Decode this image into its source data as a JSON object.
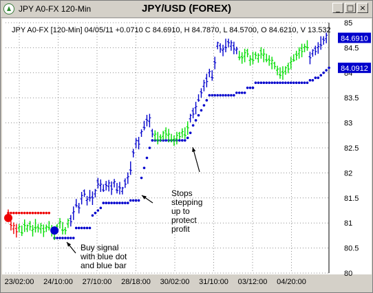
{
  "window": {
    "title": "JPY A0-FX 120-Min",
    "chart_title": "JPY/USD (FOREX)",
    "controls": {
      "minimize": "_",
      "maximize": "□",
      "close": "×"
    }
  },
  "info_line": "JPY A0-FX [120-Min] 04/05/11  +0.0710 C 84.6910, H 84.7870, L 84.5700, O 84.6210, V 13.532",
  "price_tags": {
    "last": "84.6910",
    "stop": "84.0912"
  },
  "annotations": [
    {
      "id": "buy",
      "lines": [
        "Buy signal",
        "with blue dot",
        "and blue bar"
      ]
    },
    {
      "id": "stops",
      "lines": [
        "Stops",
        "stepping",
        "up to",
        "protect",
        "profit"
      ]
    }
  ],
  "colors": {
    "up": "#00dd00",
    "down": "#0000cc",
    "stop": "#0000cc",
    "sell": "#ee0000",
    "tag_bg": "#0000cc"
  },
  "chart_data": {
    "type": "bar",
    "title": "JPY/USD (FOREX)",
    "x_tick_labels": [
      "23/02:00",
      "24/10:00",
      "27/10:00",
      "28/18:00",
      "30/02:00",
      "31/10:00",
      "03/12:00",
      "04/20:00"
    ],
    "ylim": [
      80,
      85
    ],
    "y_ticks": [
      80,
      80.5,
      81,
      81.5,
      82,
      82.5,
      83,
      83.5,
      84,
      84.5,
      85
    ],
    "grid": true,
    "price_segments": [
      {
        "color": "sell",
        "from_bar": 0,
        "to_bar": 3,
        "levels": [
          81.2,
          80.95,
          80.9,
          80.85
        ]
      },
      {
        "color": "up",
        "from_bar": 4,
        "to_bar": 22,
        "levels": [
          80.9,
          80.85,
          80.95,
          80.9,
          80.95,
          80.85,
          80.95,
          80.9,
          80.9,
          80.85,
          80.9,
          80.95,
          80.85,
          80.8,
          80.9,
          81.0,
          80.9,
          80.85,
          81.0
        ]
      },
      {
        "color": "down",
        "from_bar": 23,
        "to_bar": 53,
        "levels": [
          81.05,
          81.2,
          81.4,
          81.3,
          81.5,
          81.6,
          81.45,
          81.55,
          81.5,
          81.6,
          81.8,
          81.75,
          81.7,
          81.75,
          81.75,
          81.7,
          81.8,
          81.7,
          81.7,
          81.65,
          81.8,
          81.9,
          82.1,
          82.4,
          82.6,
          82.6,
          82.8,
          82.95,
          83.05,
          83.05,
          82.8
        ]
      },
      {
        "color": "up",
        "from_bar": 54,
        "to_bar": 66,
        "levels": [
          82.75,
          82.7,
          82.7,
          82.75,
          82.8,
          82.75,
          82.7,
          82.65,
          82.7,
          82.75,
          82.8,
          82.8,
          82.9
        ]
      },
      {
        "color": "down",
        "from_bar": 67,
        "to_bar": 84,
        "levels": [
          83.1,
          83.2,
          83.3,
          83.5,
          83.6,
          83.75,
          83.85,
          84.0,
          83.95,
          84.2,
          84.55,
          84.5,
          84.45,
          84.55,
          84.6,
          84.55,
          84.5,
          84.45
        ]
      },
      {
        "color": "up",
        "from_bar": 85,
        "to_bar": 110,
        "levels": [
          84.35,
          84.3,
          84.35,
          84.4,
          84.25,
          84.3,
          84.35,
          84.3,
          84.4,
          84.35,
          84.3,
          84.25,
          84.2,
          84.15,
          84.05,
          84.0,
          84.0,
          84.05,
          84.1,
          84.2,
          84.3,
          84.35,
          84.4,
          84.45,
          84.5,
          84.55
        ]
      },
      {
        "color": "down",
        "from_bar": 111,
        "to_bar": 117,
        "levels": [
          84.3,
          84.4,
          84.45,
          84.5,
          84.6,
          84.65,
          84.7
        ]
      }
    ],
    "stops": [
      {
        "color": "sell",
        "from_bar": 0,
        "to_bar": 15,
        "levels": [
          81.2,
          81.2,
          81.2,
          81.2,
          81.2,
          81.2,
          81.2,
          81.2,
          81.2,
          81.2,
          81.2,
          81.2,
          81.2,
          81.2,
          81.2,
          81.2
        ]
      },
      {
        "color": "stop",
        "from_bar": 17,
        "to_bar": 30,
        "levels": [
          80.7,
          80.7,
          80.7,
          80.7,
          80.7,
          80.7,
          80.7,
          80.7,
          80.9,
          80.9,
          80.9,
          80.9,
          80.9,
          80.9
        ]
      },
      {
        "color": "stop",
        "from_bar": 31,
        "to_bar": 48,
        "levels": [
          81.15,
          81.2,
          81.25,
          81.3,
          81.4,
          81.4,
          81.4,
          81.4,
          81.4,
          81.4,
          81.4,
          81.4,
          81.4,
          81.4,
          81.45,
          81.45,
          81.45,
          81.45
        ]
      },
      {
        "color": "stop",
        "from_bar": 49,
        "to_bar": 52,
        "levels": [
          81.9,
          82.1,
          82.3,
          82.5
        ]
      },
      {
        "color": "stop",
        "from_bar": 53,
        "to_bar": 73,
        "levels": [
          82.65,
          82.65,
          82.65,
          82.65,
          82.65,
          82.65,
          82.65,
          82.65,
          82.65,
          82.65,
          82.65,
          82.65,
          82.65,
          82.7,
          82.8,
          82.95,
          83.05,
          83.15,
          83.25,
          83.35,
          83.45
        ]
      },
      {
        "color": "stop",
        "from_bar": 74,
        "to_bar": 90,
        "levels": [
          83.55,
          83.55,
          83.55,
          83.55,
          83.55,
          83.55,
          83.55,
          83.55,
          83.55,
          83.55,
          83.6,
          83.6,
          83.6,
          83.6,
          83.7,
          83.7,
          83.7
        ]
      },
      {
        "color": "stop",
        "from_bar": 91,
        "to_bar": 118,
        "levels": [
          83.8,
          83.8,
          83.8,
          83.8,
          83.8,
          83.8,
          83.8,
          83.8,
          83.8,
          83.8,
          83.8,
          83.8,
          83.8,
          83.8,
          83.8,
          83.8,
          83.8,
          83.8,
          83.8,
          83.8,
          83.85,
          83.85,
          83.9,
          83.9,
          83.95,
          84.0,
          84.05,
          84.1
        ]
      }
    ],
    "signals": [
      {
        "type": "sell",
        "bar": 0,
        "value": 81.1
      },
      {
        "type": "buy",
        "bar": 17,
        "value": 80.85
      }
    ]
  }
}
